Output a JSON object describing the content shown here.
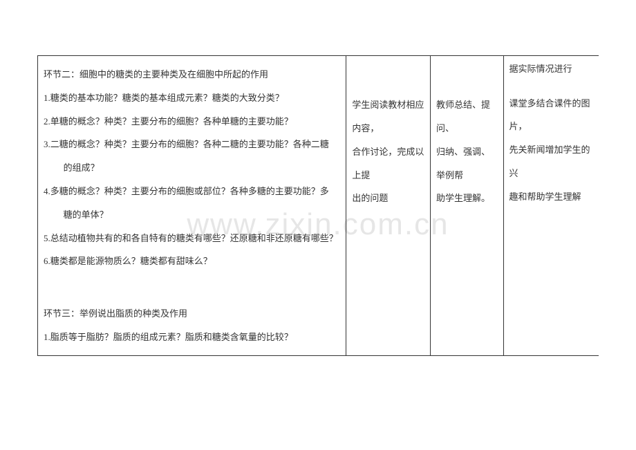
{
  "watermark": "www.zixin.com.cn",
  "table": {
    "row": {
      "col1": {
        "section2_title": "环节二：细胞中的糖类的主要种类及在细胞中所起的作用",
        "q1": "1.糖类的基本功能？糖类的基本组成元素？糖类的大致分类？",
        "q2": "2.单糖的概念？种类？主要分布的细胞？各种单糖的主要功能？",
        "q3a": "3.二糖的概念？种类？主要分布的细胞？各种二糖的主要功能？各种二糖",
        "q3b": "的组成？",
        "q4a": "4.多糖的概念？种类？主要分布的细胞或部位？各种多糖的主要功能？多",
        "q4b": "糖的单体？",
        "q5": "5.总结动植物共有的和各自特有的糖类有哪些？还原糖和非还原糖有哪些？",
        "q6": "6.糖类都是能源物质么？糖类都有甜味么？",
        "section3_title": "环节三：举例说出脂质的种类及作用",
        "s3_q1": "1.脂质等于脂肪？脂质的组成元素？脂质和糖类含氧量的比较？"
      },
      "col2": {
        "l1": "学生阅读教材相应内容，",
        "l2": "合作讨论，完成以上提",
        "l3": "出的问题"
      },
      "col3": {
        "l1": "教师总结、提问、",
        "l2": "归纳、强调、举例帮",
        "l3": "助学生理解。"
      },
      "col4": {
        "prev": "据实际情况进行",
        "l1": "课堂多结合课件的图片，",
        "l2": "先关新闻增加学生的兴",
        "l3": "趣和帮助学生理解"
      }
    }
  }
}
